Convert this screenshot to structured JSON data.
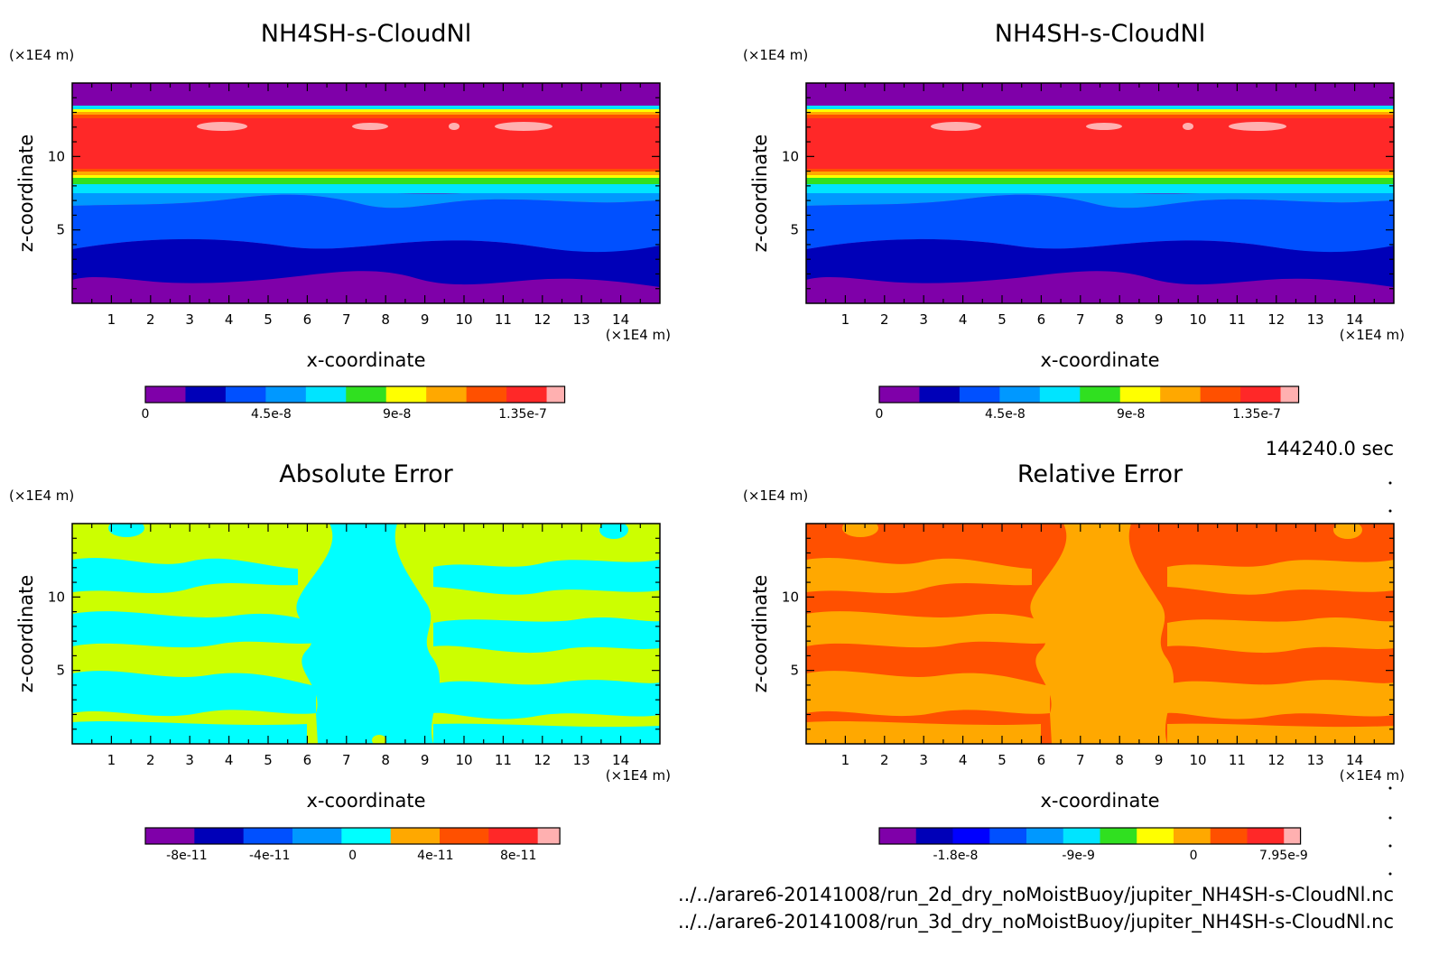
{
  "footer": {
    "time": "144240.0 sec",
    "file1": "../../arare6-20141008/run_2d_dry_noMoistBuoy/jupiter_NH4SH-s-CloudNl.nc",
    "file2": "../../arare6-20141008/run_3d_dry_noMoistBuoy/jupiter_NH4SH-s-CloudNl.nc"
  },
  "chart_data": [
    {
      "type": "heatmap",
      "title": "NH4SH-s-CloudNl",
      "xlabel": "x-coordinate",
      "ylabel": "z-coordinate",
      "x_unit": "(×1E4 m)",
      "y_unit": "(×1E4 m)",
      "xlim": [
        0,
        15
      ],
      "ylim": [
        0,
        15
      ],
      "x_ticks": [
        "1",
        "2",
        "3",
        "4",
        "5",
        "6",
        "7",
        "8",
        "9",
        "10",
        "11",
        "12",
        "13",
        "14"
      ],
      "y_ticks": [
        "5",
        "10"
      ],
      "colorbar_ticks": [
        "0",
        "4.5e-8",
        "9e-8",
        "1.35e-7"
      ],
      "colorbar_colors": [
        "#7f00a9",
        "#0000b8",
        "#0050ff",
        "#0098ff",
        "#00e4ff",
        "#30e020",
        "#ffff00",
        "#ffa800",
        "#ff5000",
        "#ff2828",
        "#ffb0b0"
      ]
    },
    {
      "type": "heatmap",
      "title": "NH4SH-s-CloudNl",
      "xlabel": "x-coordinate",
      "ylabel": "z-coordinate",
      "x_unit": "(×1E4 m)",
      "y_unit": "(×1E4 m)",
      "xlim": [
        0,
        15
      ],
      "ylim": [
        0,
        15
      ],
      "x_ticks": [
        "1",
        "2",
        "3",
        "4",
        "5",
        "6",
        "7",
        "8",
        "9",
        "10",
        "11",
        "12",
        "13",
        "14"
      ],
      "y_ticks": [
        "5",
        "10"
      ],
      "colorbar_ticks": [
        "0",
        "4.5e-8",
        "9e-8",
        "1.35e-7"
      ],
      "colorbar_colors": [
        "#7f00a9",
        "#0000b8",
        "#0050ff",
        "#0098ff",
        "#00e4ff",
        "#30e020",
        "#ffff00",
        "#ffa800",
        "#ff5000",
        "#ff2828",
        "#ffb0b0"
      ]
    },
    {
      "type": "heatmap",
      "title": "Absolute Error",
      "xlabel": "x-coordinate",
      "ylabel": "z-coordinate",
      "x_unit": "(×1E4 m)",
      "y_unit": "(×1E4 m)",
      "xlim": [
        0,
        15
      ],
      "ylim": [
        0,
        15
      ],
      "x_ticks": [
        "1",
        "2",
        "3",
        "4",
        "5",
        "6",
        "7",
        "8",
        "9",
        "10",
        "11",
        "12",
        "13",
        "14"
      ],
      "y_ticks": [
        "5",
        "10"
      ],
      "colorbar_ticks": [
        "-8e-11",
        "-4e-11",
        "0",
        "4e-11",
        "8e-11"
      ],
      "colorbar_colors": [
        "#7f00a9",
        "#0000b8",
        "#0050ff",
        "#0098ff",
        "#00ffff",
        "#ffa800",
        "#ff5000",
        "#ff2828",
        "#ffb0b0"
      ]
    },
    {
      "type": "heatmap",
      "title": "Relative Error",
      "xlabel": "x-coordinate",
      "ylabel": "z-coordinate",
      "x_unit": "(×1E4 m)",
      "y_unit": "(×1E4 m)",
      "xlim": [
        0,
        15
      ],
      "ylim": [
        0,
        15
      ],
      "x_ticks": [
        "1",
        "2",
        "3",
        "4",
        "5",
        "6",
        "7",
        "8",
        "9",
        "10",
        "11",
        "12",
        "13",
        "14"
      ],
      "y_ticks": [
        "5",
        "10"
      ],
      "colorbar_ticks": [
        "-1.8e-8",
        "-9e-9",
        "0",
        "7.95e-9"
      ],
      "colorbar_colors": [
        "#7f00a9",
        "#0000b8",
        "#0000ff",
        "#0050ff",
        "#0098ff",
        "#00e4ff",
        "#30e020",
        "#ffff00",
        "#ffa800",
        "#ff5000",
        "#ff2828",
        "#ffb0b0"
      ]
    }
  ]
}
